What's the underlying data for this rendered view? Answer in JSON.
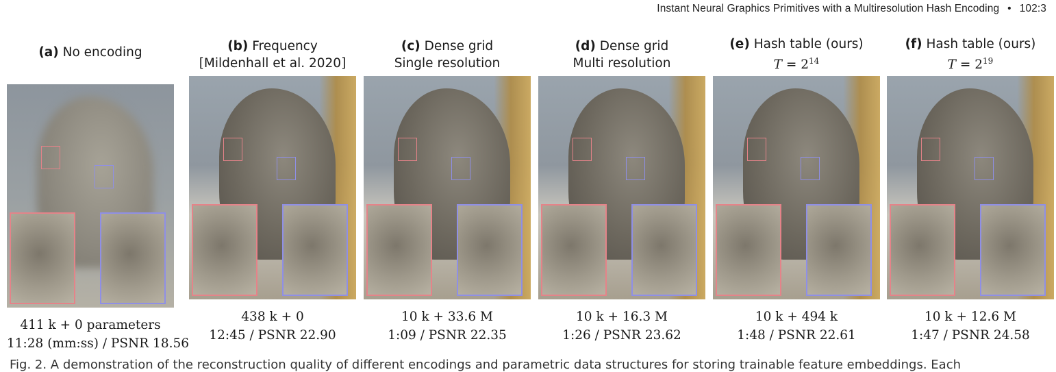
{
  "running_head": {
    "title": "Instant Neural Graphics Primitives with a Multiresolution Hash Encoding",
    "separator": "•",
    "page": "102:3"
  },
  "colors": {
    "left_inset": "#e58389",
    "right_inset": "#8f8fe6"
  },
  "panels": [
    {
      "tag": "(a)",
      "line1": "No encoding",
      "line2": "",
      "params": "411 k + 0 parameters",
      "stats": "11:28 (mm:ss) / PSNR 18.56"
    },
    {
      "tag": "(b)",
      "line1": "Frequency",
      "line2": "[Mildenhall et al. 2020]",
      "params": "438 k + 0",
      "stats": "12:45 / PSNR 22.90"
    },
    {
      "tag": "(c)",
      "line1": "Dense grid",
      "line2": "Single resolution",
      "params": "10 k + 33.6 M",
      "stats": "1:09 / PSNR 22.35"
    },
    {
      "tag": "(d)",
      "line1": "Dense grid",
      "line2": "Multi resolution",
      "params": "10 k + 16.3 M",
      "stats": "1:26 / PSNR 23.62"
    },
    {
      "tag": "(e)",
      "line1": "Hash table (ours)",
      "math_var": "T",
      "math_eq": "= 2",
      "math_exp": "14",
      "params": "10 k + 494 k",
      "stats": "1:48 / PSNR 22.61"
    },
    {
      "tag": "(f)",
      "line1": "Hash table (ours)",
      "math_var": "T",
      "math_eq": "= 2",
      "math_exp": "19",
      "params": "10 k + 12.6 M",
      "stats": "1:47 / PSNR 24.58"
    }
  ],
  "caption": "Fig. 2. A demonstration of the reconstruction quality of different encodings and parametric data structures for storing trainable feature embeddings. Each"
}
